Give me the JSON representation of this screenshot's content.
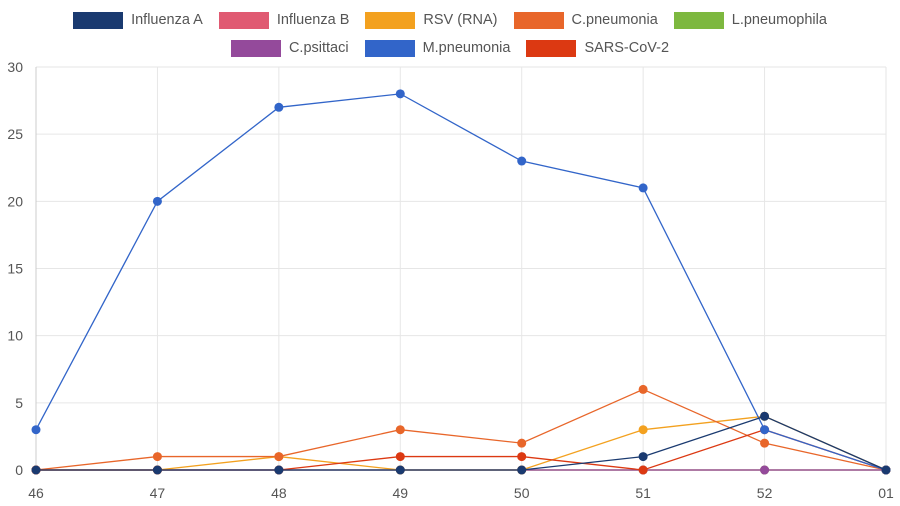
{
  "chart_data": {
    "type": "line",
    "categories": [
      "46",
      "47",
      "48",
      "49",
      "50",
      "51",
      "52",
      "01"
    ],
    "ylim": [
      0,
      30
    ],
    "yticks": [
      0,
      5,
      10,
      15,
      20,
      25,
      30
    ],
    "title": "",
    "xlabel": "",
    "ylabel": "",
    "legend_position": "top",
    "series": [
      {
        "name": "Influenza A",
        "color": "#1a3a70",
        "values": [
          0,
          0,
          0,
          0,
          0,
          1,
          4,
          0
        ]
      },
      {
        "name": "Influenza B",
        "color": "#e05a72",
        "values": [
          0,
          0,
          0,
          0,
          0,
          0,
          0,
          0
        ]
      },
      {
        "name": "RSV (RNA)",
        "color": "#f3a11f",
        "values": [
          0,
          0,
          1,
          0,
          0,
          3,
          4,
          0
        ]
      },
      {
        "name": "C.pneumonia",
        "color": "#e8662a",
        "values": [
          0,
          1,
          1,
          3,
          2,
          6,
          2,
          0
        ]
      },
      {
        "name": "L.pneumophila",
        "color": "#7db83f",
        "values": [
          0,
          0,
          0,
          0,
          0,
          0,
          0,
          0
        ]
      },
      {
        "name": "C.psittaci",
        "color": "#944a9b",
        "values": [
          0,
          0,
          0,
          0,
          0,
          0,
          0,
          0
        ]
      },
      {
        "name": "M.pneumonia",
        "color": "#3265c9",
        "values": [
          3,
          20,
          27,
          28,
          23,
          21,
          3,
          0
        ]
      },
      {
        "name": "SARS-CoV-2",
        "color": "#dc3912",
        "values": [
          0,
          0,
          0,
          1,
          1,
          0,
          3,
          0
        ]
      }
    ],
    "draw_order": [
      1,
      4,
      5,
      2,
      3,
      7,
      6,
      0
    ],
    "legend_rows": [
      [
        0,
        1,
        2,
        3,
        4
      ],
      [
        5,
        6,
        7
      ]
    ]
  }
}
